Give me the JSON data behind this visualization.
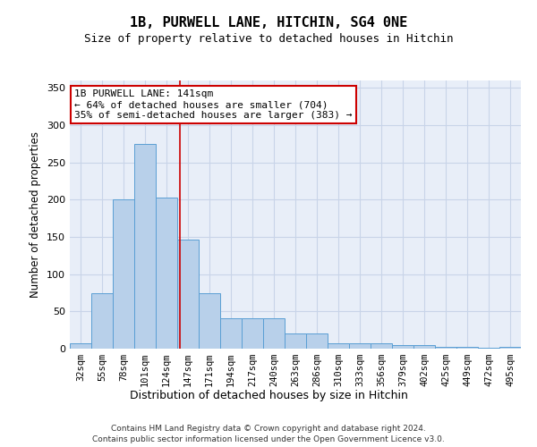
{
  "title": "1B, PURWELL LANE, HITCHIN, SG4 0NE",
  "subtitle": "Size of property relative to detached houses in Hitchin",
  "xlabel": "Distribution of detached houses by size in Hitchin",
  "ylabel": "Number of detached properties",
  "bar_values": [
    7,
    75,
    200,
    275,
    203,
    147,
    75,
    41,
    41,
    41,
    20,
    20,
    7,
    7,
    7,
    5,
    5,
    3,
    3,
    1,
    3
  ],
  "bar_labels": [
    "32sqm",
    "55sqm",
    "78sqm",
    "101sqm",
    "124sqm",
    "147sqm",
    "171sqm",
    "194sqm",
    "217sqm",
    "240sqm",
    "263sqm",
    "286sqm",
    "310sqm",
    "333sqm",
    "356sqm",
    "379sqm",
    "402sqm",
    "425sqm",
    "449sqm",
    "472sqm",
    "495sqm"
  ],
  "bar_color": "#b8d0ea",
  "bar_edge_color": "#5a9fd4",
  "grid_color": "#c8d4e8",
  "background_color": "#e8eef8",
  "vline_x": 4.62,
  "vline_color": "#cc0000",
  "annotation_text": "1B PURWELL LANE: 141sqm\n← 64% of detached houses are smaller (704)\n35% of semi-detached houses are larger (383) →",
  "annotation_box_color": "#ffffff",
  "annotation_border_color": "#cc0000",
  "ylim": [
    0,
    360
  ],
  "yticks": [
    0,
    50,
    100,
    150,
    200,
    250,
    300,
    350
  ],
  "footer_line1": "Contains HM Land Registry data © Crown copyright and database right 2024.",
  "footer_line2": "Contains public sector information licensed under the Open Government Licence v3.0."
}
